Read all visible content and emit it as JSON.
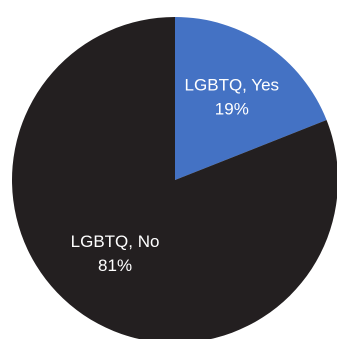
{
  "chart_data": {
    "type": "pie",
    "title": "",
    "slices": [
      {
        "label": "LGBTQ, Yes",
        "value": 19,
        "display": "19%",
        "color": "#4472C4"
      },
      {
        "label": "LGBTQ, No",
        "value": 81,
        "display": "81%",
        "color": "#231F20"
      }
    ],
    "start": "top",
    "direction": "clockwise",
    "legend": "none"
  }
}
